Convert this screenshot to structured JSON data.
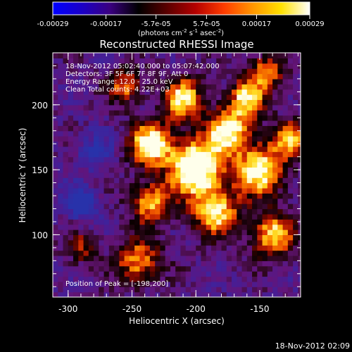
{
  "colorbar": {
    "tick_labels": [
      "-0.00029",
      "-0.00017",
      "-5.7e-05",
      "5.7e-05",
      "0.00017",
      "0.00029"
    ],
    "tick_values": [
      -0.00029,
      -0.00017,
      -5.7e-05,
      5.7e-05,
      0.00017,
      0.00029
    ],
    "range": [
      -0.00029,
      0.00029
    ],
    "unit_text": "(photons cm",
    "unit_sup1": "-2",
    "unit_mid": " s",
    "unit_sup2": "-1",
    "unit_mid2": " asec",
    "unit_sup3": "-2",
    "unit_end": ")",
    "colors": [
      "#0000ff",
      "#1a00c8",
      "#3a0080",
      "#000000",
      "#5a0000",
      "#b40000",
      "#ff3c00",
      "#ff9600",
      "#ffe100",
      "#ffffff"
    ]
  },
  "chart_data": {
    "type": "heatmap",
    "title": "Reconstructed RHESSI Image",
    "xlabel": "Heliocentric X (arcsec)",
    "ylabel": "Heliocentric Y (arcsec)",
    "xlim": [
      -312,
      -118
    ],
    "ylim": [
      52,
      240
    ],
    "x_ticks": [
      -300,
      -250,
      -200,
      -150
    ],
    "y_ticks": [
      100,
      150,
      200
    ],
    "peak": [
      -198,
      200
    ],
    "sources": [
      {
        "x": -200,
        "y": 152,
        "sigma": 14,
        "amp": 1.0
      },
      {
        "x": -235,
        "y": 170,
        "sigma": 12,
        "amp": 0.8
      },
      {
        "x": -175,
        "y": 180,
        "sigma": 12,
        "amp": 0.75
      },
      {
        "x": -150,
        "y": 150,
        "sigma": 14,
        "amp": 0.75
      },
      {
        "x": -160,
        "y": 205,
        "sigma": 10,
        "amp": 0.65
      },
      {
        "x": -185,
        "y": 118,
        "sigma": 13,
        "amp": 0.7
      },
      {
        "x": -235,
        "y": 125,
        "sigma": 11,
        "amp": 0.6
      },
      {
        "x": -140,
        "y": 100,
        "sigma": 12,
        "amp": 0.65
      },
      {
        "x": -245,
        "y": 80,
        "sigma": 12,
        "amp": 0.55
      },
      {
        "x": -210,
        "y": 205,
        "sigma": 11,
        "amp": 0.7
      },
      {
        "x": -255,
        "y": 215,
        "sigma": 9,
        "amp": 0.5
      },
      {
        "x": -145,
        "y": 225,
        "sigma": 9,
        "amp": 0.55
      },
      {
        "x": -125,
        "y": 175,
        "sigma": 10,
        "amp": 0.55
      },
      {
        "x": -290,
        "y": 90,
        "sigma": 8,
        "amp": 0.35
      },
      {
        "x": -290,
        "y": 125,
        "sigma": 9,
        "amp": -0.4
      },
      {
        "x": -280,
        "y": 165,
        "sigma": 10,
        "amp": -0.25
      }
    ],
    "info_lines": [
      "18-Nov-2012 05:02:40.000 to 05:07:42.000",
      "Detectors: 3F 5F 6F 7F 8F 9F, Att 0",
      "Energy Range: 12.0 - 25.0 keV",
      "Clean     Total counts: 4.22E+03"
    ],
    "peak_label": "Position of Peak = [-198,200]"
  },
  "timestamp": "18-Nov-2012 02:09"
}
